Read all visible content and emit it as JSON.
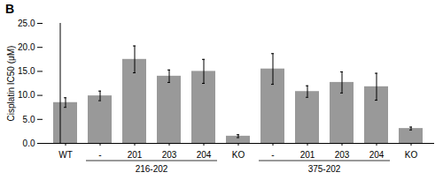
{
  "chart_data": {
    "type": "bar",
    "title": "B",
    "ylabel": "Cisplatin IC50 (μM)",
    "categories": [
      "WT",
      "-",
      "201",
      "203",
      "204",
      "KO",
      "-",
      "201",
      "203",
      "204",
      "KO"
    ],
    "groups": [
      null,
      "216-202",
      "216-202",
      "216-202",
      "216-202",
      null,
      "375-202",
      "375-202",
      "375-202",
      "375-202",
      null
    ],
    "values": [
      8.5,
      9.9,
      17.5,
      14.0,
      15.0,
      1.5,
      15.5,
      10.8,
      12.7,
      11.8,
      3.1
    ],
    "errors": [
      1.0,
      1.0,
      2.8,
      1.3,
      2.5,
      0.3,
      3.2,
      1.2,
      2.2,
      2.8,
      0.3
    ],
    "color": "#999999",
    "ylim": [
      0.0,
      25.0
    ],
    "yticks": [
      {
        "value": 0,
        "label": "0.0"
      },
      {
        "value": 5,
        "label": "5.0"
      },
      {
        "value": 10,
        "label": "10.0"
      },
      {
        "value": 15,
        "label": "15.0"
      },
      {
        "value": 20,
        "label": "20.0"
      },
      {
        "value": 25,
        "label": "25.0"
      }
    ]
  }
}
